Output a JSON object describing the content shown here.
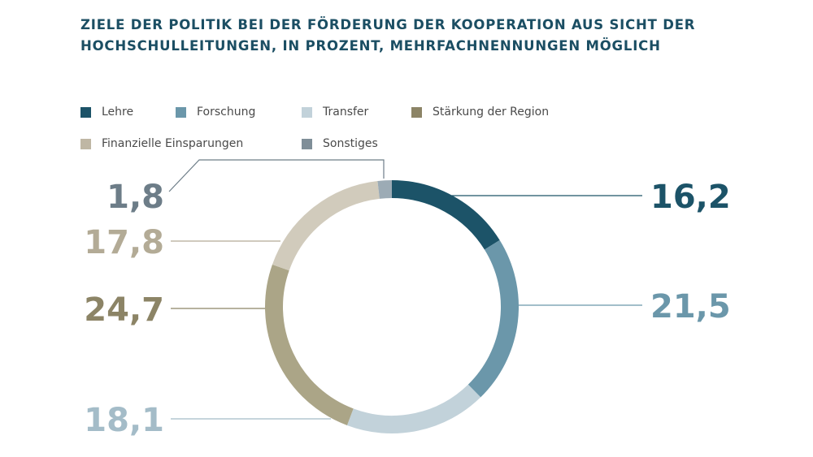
{
  "title_lines": [
    "ZIELE DER POLITIK BEI DER FÖRDERUNG DER KOOPERATION AUS SICHT DER",
    "HOCHSCHULLEITUNGEN, IN PROZENT, MEHRFACHNENNUNGEN MÖGLICH"
  ],
  "legend": [
    {
      "label": "Lehre",
      "color": "#1c5368"
    },
    {
      "label": "Forschung",
      "color": "#6b97aa"
    },
    {
      "label": "Transfer",
      "color": "#c2d2da"
    },
    {
      "label": "Stärkung der Region",
      "color": "#8c8466"
    },
    {
      "label": "Finanzielle Einsparungen",
      "color": "#bfb7a4"
    },
    {
      "label": "Sonstiges",
      "color": "#7f8e98"
    }
  ],
  "chart_data": {
    "type": "pie",
    "variant": "donut",
    "title": "ZIELE DER POLITIK BEI DER FÖRDERUNG DER KOOPERATION AUS SICHT DER HOCHSCHULLEITUNGEN, IN PROZENT, MEHRFACHNENNUNGEN MÖGLICH",
    "unit": "Prozent",
    "start": "top, clockwise",
    "slices": [
      {
        "name": "Lehre",
        "value": 16.2,
        "label": "16,2",
        "ring_color": "#1c5368",
        "text_color": "#1c5368"
      },
      {
        "name": "Forschung",
        "value": 21.5,
        "label": "21,5",
        "ring_color": "#6b97aa",
        "text_color": "#6b97aa"
      },
      {
        "name": "Transfer",
        "value": 18.1,
        "label": "18,1",
        "ring_color": "#c2d2da",
        "text_color": "#a4bcc8"
      },
      {
        "name": "Stärkung der Region",
        "value": 24.7,
        "label": "24,7",
        "ring_color": "#aba587",
        "text_color": "#8c8466"
      },
      {
        "name": "Finanzielle Einsparungen",
        "value": 17.8,
        "label": "17,8",
        "ring_color": "#d1cbbc",
        "text_color": "#b3ab96"
      },
      {
        "name": "Sonstiges",
        "value": 1.8,
        "label": "1,8",
        "ring_color": "#9cabb5",
        "text_color": "#6d7d88"
      }
    ]
  }
}
